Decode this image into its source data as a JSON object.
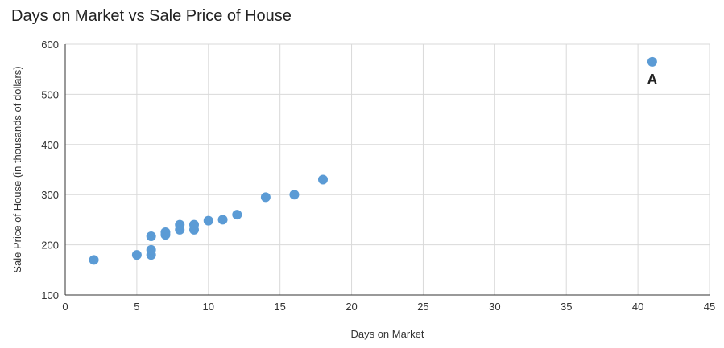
{
  "chart_data": {
    "type": "scatter",
    "title": "Days on Market vs Sale Price of House",
    "xlabel": "Days on Market",
    "ylabel": "Sale Price of House (in thousands of dollars)",
    "xlim": [
      0,
      45
    ],
    "ylim": [
      100,
      600
    ],
    "x_ticks": [
      0,
      5,
      10,
      15,
      20,
      25,
      30,
      35,
      40,
      45
    ],
    "y_ticks": [
      100,
      200,
      300,
      400,
      500,
      600
    ],
    "grid": true,
    "legend": "none",
    "point_color": "#5b9bd5",
    "points": [
      {
        "x": 2,
        "y": 170
      },
      {
        "x": 5,
        "y": 180
      },
      {
        "x": 6,
        "y": 180
      },
      {
        "x": 6,
        "y": 190
      },
      {
        "x": 6,
        "y": 217
      },
      {
        "x": 7,
        "y": 220
      },
      {
        "x": 7,
        "y": 225
      },
      {
        "x": 8,
        "y": 230
      },
      {
        "x": 8,
        "y": 240
      },
      {
        "x": 9,
        "y": 230
      },
      {
        "x": 9,
        "y": 240
      },
      {
        "x": 10,
        "y": 248
      },
      {
        "x": 11,
        "y": 250
      },
      {
        "x": 12,
        "y": 260
      },
      {
        "x": 14,
        "y": 295
      },
      {
        "x": 16,
        "y": 300
      },
      {
        "x": 18,
        "y": 330
      },
      {
        "x": 41,
        "y": 565,
        "label": "A"
      }
    ]
  }
}
